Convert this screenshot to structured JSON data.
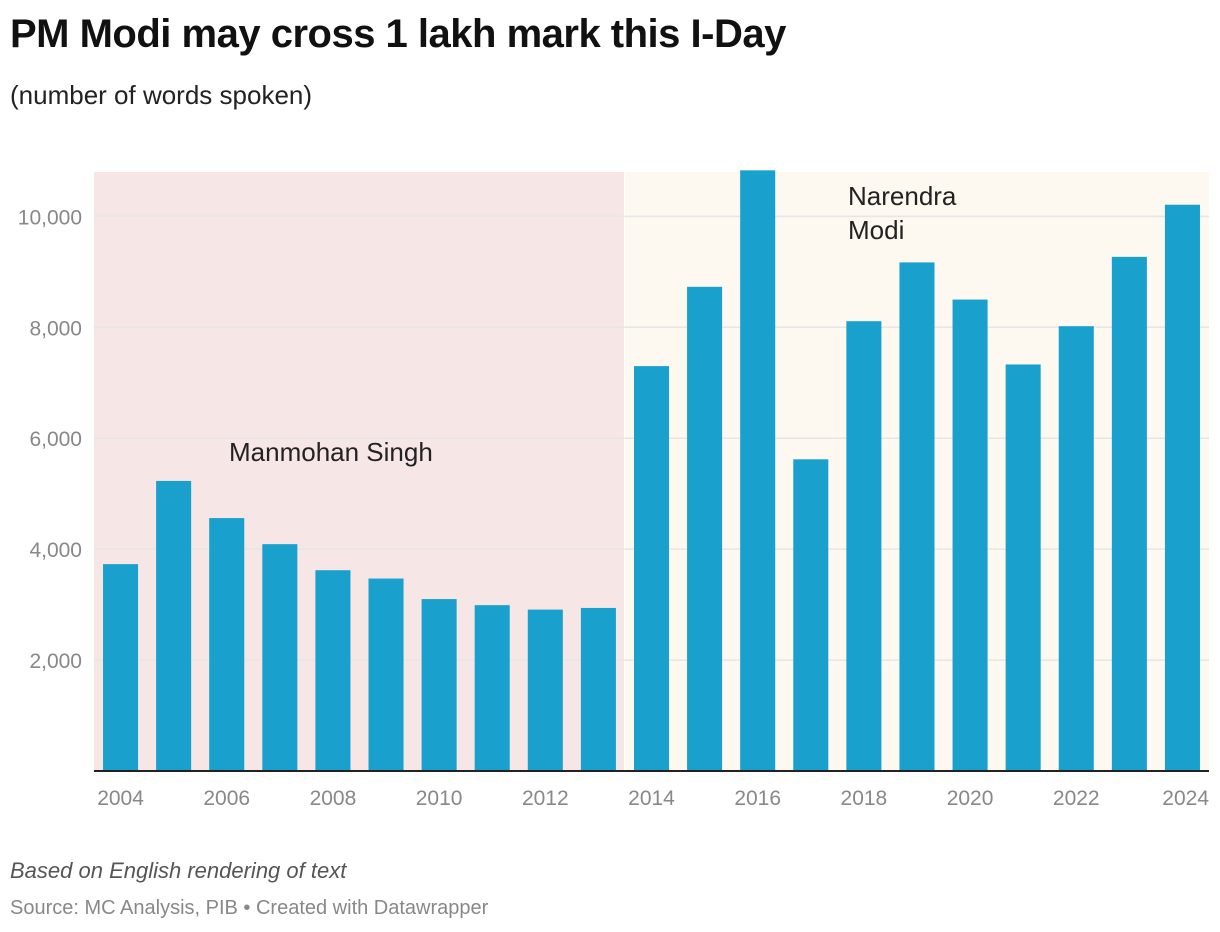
{
  "title": "PM Modi may cross 1 lakh mark this I-Day",
  "subtitle": "(number of words spoken)",
  "footer": {
    "note": "Based on English rendering of text",
    "source": "Source: MC Analysis, PIB • Created with Datawrapper"
  },
  "colors": {
    "bar": "#1aa0cc",
    "singh_band": "#f6e7e6",
    "modi_band": "#fdf8f0",
    "gridline": "#e6e6e6",
    "axis": "#222222"
  },
  "chart_data": {
    "type": "bar",
    "title": "PM Modi may cross 1 lakh mark this I-Day",
    "subtitle": "(number of words spoken)",
    "categories": [
      "2004",
      "2005",
      "2006",
      "2007",
      "2008",
      "2009",
      "2010",
      "2011",
      "2012",
      "2013",
      "2014",
      "2015",
      "2016",
      "2017",
      "2018",
      "2019",
      "2020",
      "2021",
      "2022",
      "2023",
      "2024"
    ],
    "values": [
      3730,
      5230,
      4560,
      4090,
      3620,
      3470,
      3100,
      2990,
      2910,
      2940,
      7300,
      8730,
      10830,
      5620,
      8110,
      9170,
      8500,
      7330,
      8020,
      9270,
      10210
    ],
    "x_tick_labels": [
      "2004",
      "2006",
      "2008",
      "2010",
      "2012",
      "2014",
      "2016",
      "2018",
      "2020",
      "2022",
      "2024"
    ],
    "y_ticks": [
      2000,
      4000,
      6000,
      8000,
      10000
    ],
    "y_tick_labels": [
      "2,000",
      "4,000",
      "6,000",
      "8,000",
      "10,000"
    ],
    "ylim": [
      0,
      10800
    ],
    "grid": true,
    "shaded_periods": [
      {
        "label": "Manmohan Singh",
        "from": "2004",
        "to": "2013"
      },
      {
        "label": "Narendra Modi",
        "label_lines": [
          "Narendra",
          "Modi"
        ],
        "from": "2014",
        "to": "2024"
      }
    ]
  }
}
